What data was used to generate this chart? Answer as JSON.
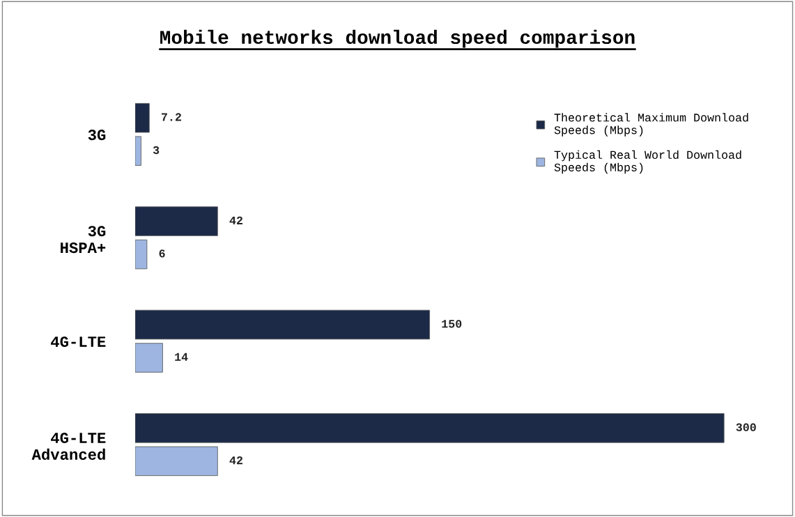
{
  "chart_data": {
    "type": "bar",
    "orientation": "horizontal",
    "title": "Mobile networks download speed comparison",
    "categories": [
      "3G",
      "3G HSPA+",
      "4G-LTE",
      "4G-LTE Advanced"
    ],
    "series": [
      {
        "name": "Theoretical Maximum Download Speeds (Mbps)",
        "color": "#1c2a48",
        "values": [
          7.2,
          42,
          150,
          300
        ]
      },
      {
        "name": "Typical Real World Download Speeds (Mbps)",
        "color": "#9db5e0",
        "values": [
          3,
          6,
          14,
          42
        ]
      }
    ],
    "data_labels": true,
    "legend": "top right",
    "grid": false
  }
}
